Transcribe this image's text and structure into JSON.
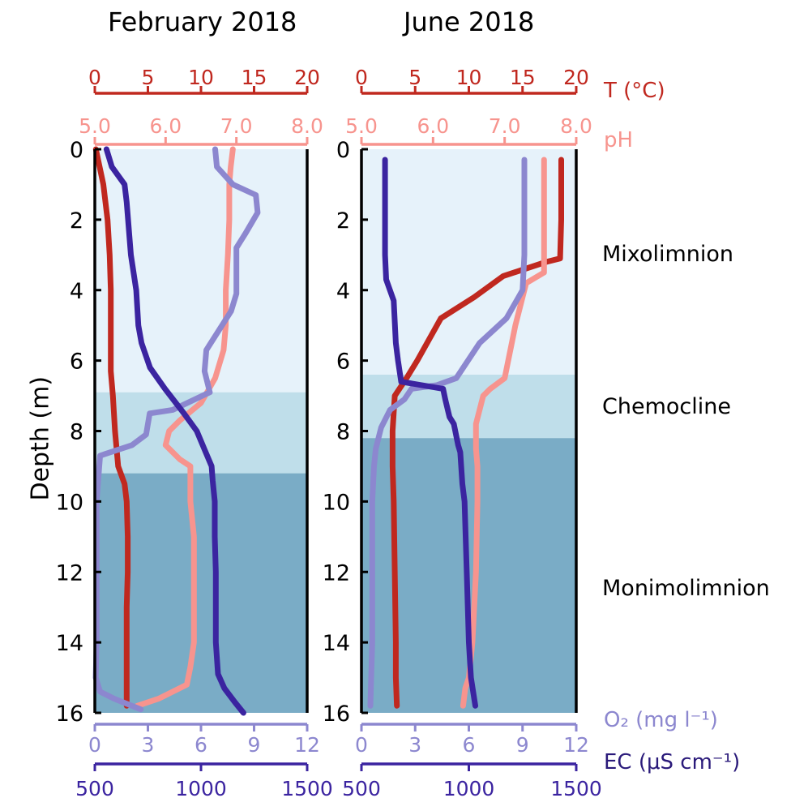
{
  "colors": {
    "temperature": "#c0281f",
    "ph": "#f7948e",
    "o2": "#8c87cf",
    "ec": "#3b24a0",
    "mixolimnion": "#e6f2fa",
    "chemocline": "#bfdeea",
    "monimolimnion": "#7aacc6"
  },
  "labels": {
    "ylabel": "Depth (m)",
    "t_axis": "T (°C)",
    "ph_axis": "pH",
    "o2_axis": "O₂ (mg l⁻¹)",
    "ec_axis": "EC (μS cm⁻¹)",
    "mixolimnion": "Mixolimnion",
    "chemocline": "Chemocline",
    "monimolimnion": "Monimolimnion"
  },
  "chart_data": [
    {
      "type": "line",
      "title": "February 2018",
      "ylabel": "Depth (m)",
      "ylim": [
        0,
        16
      ],
      "y_inverted": true,
      "y_ticks": [
        0,
        2,
        4,
        6,
        8,
        10,
        12,
        14,
        16
      ],
      "axes": {
        "temperature": {
          "label": "T (°C)",
          "range": [
            0,
            20
          ],
          "ticks": [
            "0",
            "5",
            "10",
            "15",
            "20"
          ],
          "position": "top"
        },
        "ph": {
          "label": "pH",
          "range": [
            5.0,
            8.0
          ],
          "ticks": [
            "5.0",
            "6.0",
            "7.0",
            "8.0"
          ],
          "position": "top"
        },
        "o2": {
          "label": "O₂ (mg l⁻¹)",
          "range": [
            0,
            12
          ],
          "ticks": [
            "0",
            "3",
            "6",
            "9",
            "12"
          ],
          "position": "bottom"
        },
        "ec": {
          "label": "EC (μS cm⁻¹)",
          "range": [
            500,
            1500
          ],
          "ticks": [
            "500",
            "1000",
            "1500"
          ],
          "position": "bottom"
        }
      },
      "zones": [
        {
          "name": "Mixolimnion",
          "from": 0,
          "to": 6.9
        },
        {
          "name": "Chemocline",
          "from": 6.9,
          "to": 9.2
        },
        {
          "name": "Monimolimnion",
          "from": 9.2,
          "to": 16
        }
      ],
      "series": [
        {
          "name": "T (°C)",
          "axis": "temperature",
          "points": [
            [
              0.1,
              0
            ],
            [
              0.8,
              1
            ],
            [
              1.2,
              2
            ],
            [
              1.4,
              3
            ],
            [
              1.5,
              4
            ],
            [
              1.5,
              5
            ],
            [
              1.5,
              6
            ],
            [
              1.5,
              6.3
            ],
            [
              1.7,
              7
            ],
            [
              1.9,
              8
            ],
            [
              2.2,
              9
            ],
            [
              2.8,
              9.5
            ],
            [
              3.0,
              10
            ],
            [
              3.1,
              11
            ],
            [
              3.1,
              12
            ],
            [
              3.0,
              13
            ],
            [
              3.0,
              14
            ],
            [
              3.0,
              15
            ],
            [
              3.0,
              15.8
            ]
          ]
        },
        {
          "name": "pH",
          "axis": "ph",
          "points": [
            [
              6.95,
              0
            ],
            [
              6.92,
              0.5
            ],
            [
              6.9,
              1
            ],
            [
              6.9,
              2
            ],
            [
              6.88,
              3
            ],
            [
              6.85,
              4
            ],
            [
              6.85,
              5
            ],
            [
              6.82,
              5.7
            ],
            [
              6.7,
              6.5
            ],
            [
              6.5,
              7.2
            ],
            [
              6.2,
              7.7
            ],
            [
              6.05,
              8
            ],
            [
              6.0,
              8.4
            ],
            [
              6.2,
              8.8
            ],
            [
              6.35,
              9
            ],
            [
              6.35,
              10
            ],
            [
              6.4,
              11
            ],
            [
              6.4,
              12
            ],
            [
              6.4,
              13
            ],
            [
              6.4,
              14
            ],
            [
              6.35,
              14.7
            ],
            [
              6.3,
              15.2
            ],
            [
              5.9,
              15.6
            ],
            [
              5.6,
              15.8
            ]
          ]
        },
        {
          "name": "O₂ (mg l⁻¹)",
          "axis": "o2",
          "points": [
            [
              6.8,
              0
            ],
            [
              6.9,
              0.5
            ],
            [
              7.8,
              1
            ],
            [
              9.1,
              1.3
            ],
            [
              9.2,
              1.8
            ],
            [
              8.5,
              2.4
            ],
            [
              8.0,
              2.8
            ],
            [
              8.0,
              4.1
            ],
            [
              7.7,
              4.6
            ],
            [
              6.3,
              5.7
            ],
            [
              6.2,
              6.3
            ],
            [
              6.5,
              6.9
            ],
            [
              4.4,
              7.4
            ],
            [
              3.1,
              7.5
            ],
            [
              2.9,
              8.1
            ],
            [
              2.1,
              8.4
            ],
            [
              0.3,
              8.7
            ],
            [
              0.1,
              10
            ],
            [
              0.1,
              12
            ],
            [
              0.1,
              14
            ],
            [
              0.05,
              15
            ],
            [
              0.3,
              15.4
            ],
            [
              1.1,
              15.6
            ],
            [
              2.6,
              15.9
            ]
          ]
        },
        {
          "name": "EC (μS cm⁻¹)",
          "axis": "ec",
          "points": [
            [
              555,
              0
            ],
            [
              580,
              0.5
            ],
            [
              640,
              1
            ],
            [
              650,
              1.5
            ],
            [
              670,
              3
            ],
            [
              695,
              4
            ],
            [
              705,
              5
            ],
            [
              720,
              5.5
            ],
            [
              760,
              6.2
            ],
            [
              830,
              6.8
            ],
            [
              920,
              7.5
            ],
            [
              980,
              8
            ],
            [
              1015,
              8.5
            ],
            [
              1050,
              9
            ],
            [
              1055,
              9.4
            ],
            [
              1065,
              10
            ],
            [
              1065,
              11
            ],
            [
              1070,
              12
            ],
            [
              1070,
              13
            ],
            [
              1070,
              14
            ],
            [
              1080,
              14.9
            ],
            [
              1110,
              15.3
            ],
            [
              1160,
              15.7
            ],
            [
              1200,
              16
            ]
          ]
        }
      ]
    },
    {
      "type": "line",
      "title": "June 2018",
      "ylabel": "Depth (m)",
      "ylim": [
        0,
        16
      ],
      "y_inverted": true,
      "y_ticks": [
        0,
        2,
        4,
        6,
        8,
        10,
        12,
        14,
        16
      ],
      "axes": {
        "temperature": {
          "label": "T (°C)",
          "range": [
            0,
            20
          ],
          "ticks": [
            "0",
            "5",
            "10",
            "15",
            "20"
          ],
          "position": "top"
        },
        "ph": {
          "label": "pH",
          "range": [
            5.0,
            8.0
          ],
          "ticks": [
            "5.0",
            "6.0",
            "7.0",
            "8.0"
          ],
          "position": "top"
        },
        "o2": {
          "label": "O₂ (mg l⁻¹)",
          "range": [
            0,
            12
          ],
          "ticks": [
            "0",
            "3",
            "6",
            "9",
            "12"
          ],
          "position": "bottom"
        },
        "ec": {
          "label": "EC (μS cm⁻¹)",
          "range": [
            500,
            1500
          ],
          "ticks": [
            "500",
            "1000",
            "1500"
          ],
          "position": "bottom"
        }
      },
      "zones": [
        {
          "name": "Mixolimnion",
          "from": 0,
          "to": 6.4
        },
        {
          "name": "Chemocline",
          "from": 6.4,
          "to": 8.2
        },
        {
          "name": "Monimolimnion",
          "from": 8.2,
          "to": 16
        }
      ],
      "series": [
        {
          "name": "T (°C)",
          "axis": "temperature",
          "points": [
            [
              18.6,
              0.3
            ],
            [
              18.6,
              2
            ],
            [
              18.5,
              3.1
            ],
            [
              17.2,
              3.2
            ],
            [
              13.2,
              3.6
            ],
            [
              10.5,
              4.2
            ],
            [
              7.4,
              4.8
            ],
            [
              5.2,
              6
            ],
            [
              4.2,
              6.5
            ],
            [
              3.1,
              7
            ],
            [
              2.9,
              8
            ],
            [
              2.9,
              9
            ],
            [
              3.0,
              10
            ],
            [
              3.1,
              12
            ],
            [
              3.2,
              14
            ],
            [
              3.2,
              15
            ],
            [
              3.3,
              15.8
            ]
          ]
        },
        {
          "name": "pH",
          "axis": "ph",
          "points": [
            [
              7.55,
              0.3
            ],
            [
              7.55,
              1
            ],
            [
              7.55,
              2
            ],
            [
              7.55,
              3
            ],
            [
              7.55,
              3.5
            ],
            [
              7.3,
              3.8
            ],
            [
              7.15,
              5
            ],
            [
              7.0,
              6.5
            ],
            [
              6.8,
              6.8
            ],
            [
              6.7,
              7
            ],
            [
              6.6,
              7.8
            ],
            [
              6.6,
              8.5
            ],
            [
              6.62,
              9
            ],
            [
              6.62,
              10
            ],
            [
              6.6,
              12
            ],
            [
              6.55,
              14
            ],
            [
              6.5,
              15
            ],
            [
              6.45,
              15.3
            ],
            [
              6.42,
              15.8
            ]
          ]
        },
        {
          "name": "O₂ (mg l⁻¹)",
          "axis": "o2",
          "points": [
            [
              9.1,
              0.3
            ],
            [
              9.1,
              2
            ],
            [
              9.1,
              3
            ],
            [
              9.0,
              4
            ],
            [
              8.1,
              4.8
            ],
            [
              6.6,
              5.5
            ],
            [
              5.3,
              6.5
            ],
            [
              4.2,
              6.7
            ],
            [
              2.8,
              6.8
            ],
            [
              2.4,
              7.1
            ],
            [
              1.6,
              7.4
            ],
            [
              1.1,
              7.9
            ],
            [
              0.8,
              8.5
            ],
            [
              0.7,
              9
            ],
            [
              0.6,
              10
            ],
            [
              0.6,
              12
            ],
            [
              0.6,
              14
            ],
            [
              0.5,
              15.8
            ]
          ]
        },
        {
          "name": "EC (μS cm⁻¹)",
          "axis": "ec",
          "points": [
            [
              610,
              0.3
            ],
            [
              610,
              1
            ],
            [
              610,
              2
            ],
            [
              610,
              3
            ],
            [
              615,
              3.7
            ],
            [
              650,
              4.3
            ],
            [
              660,
              5.5
            ],
            [
              670,
              6
            ],
            [
              685,
              6.6
            ],
            [
              880,
              6.8
            ],
            [
              890,
              7.1
            ],
            [
              910,
              7.6
            ],
            [
              930,
              7.8
            ],
            [
              950,
              8.4
            ],
            [
              960,
              8.6
            ],
            [
              970,
              9.5
            ],
            [
              980,
              10
            ],
            [
              990,
              12
            ],
            [
              1000,
              14
            ],
            [
              1010,
              15
            ],
            [
              1030,
              15.8
            ]
          ]
        }
      ]
    }
  ]
}
